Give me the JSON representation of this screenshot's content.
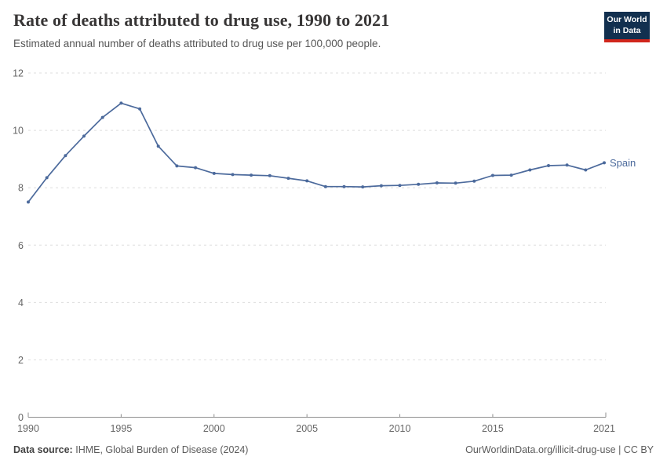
{
  "header": {
    "title": "Rate of deaths attributed to drug use, 1990 to 2021",
    "subtitle": "Estimated annual number of deaths attributed to drug use per 100,000 people."
  },
  "logo": {
    "line1": "Our World",
    "line2": "in Data",
    "background_color": "#12304f",
    "accent_color": "#d1261c"
  },
  "chart_data": {
    "type": "line",
    "title": "Rate of deaths attributed to drug use, 1990 to 2021",
    "subtitle": "Estimated annual number of deaths attributed to drug use per 100,000 people.",
    "x": [
      1990,
      1991,
      1992,
      1993,
      1994,
      1995,
      1996,
      1997,
      1998,
      1999,
      2000,
      2001,
      2002,
      2003,
      2004,
      2005,
      2006,
      2007,
      2008,
      2009,
      2010,
      2011,
      2012,
      2013,
      2014,
      2015,
      2016,
      2017,
      2018,
      2019,
      2020,
      2021
    ],
    "series": [
      {
        "name": "Spain",
        "color": "#4c6a9c",
        "values": [
          7.5,
          8.35,
          9.12,
          9.8,
          10.45,
          10.95,
          10.75,
          9.45,
          8.76,
          8.7,
          8.5,
          8.46,
          8.44,
          8.42,
          8.33,
          8.24,
          8.04,
          8.04,
          8.03,
          8.07,
          8.08,
          8.12,
          8.17,
          8.16,
          8.23,
          8.43,
          8.44,
          8.62,
          8.77,
          8.79,
          8.62,
          8.87
        ]
      }
    ],
    "xticks": [
      1990,
      1995,
      2000,
      2005,
      2010,
      2015,
      2021
    ],
    "yticks": [
      0,
      2,
      4,
      6,
      8,
      10,
      12
    ],
    "xlim": [
      1990,
      2021
    ],
    "ylim": [
      0,
      12
    ],
    "grid": "horizontal-dashed",
    "legend": "end-of-line-label",
    "gridline_color": "#dddddd",
    "axis_color": "#8f8f8f",
    "tick_label_color": "#666666"
  },
  "footer": {
    "source_label": "Data source:",
    "source_value": "IHME, Global Burden of Disease (2024)",
    "link": "OurWorldinData.org/illicit-drug-use | CC BY"
  }
}
